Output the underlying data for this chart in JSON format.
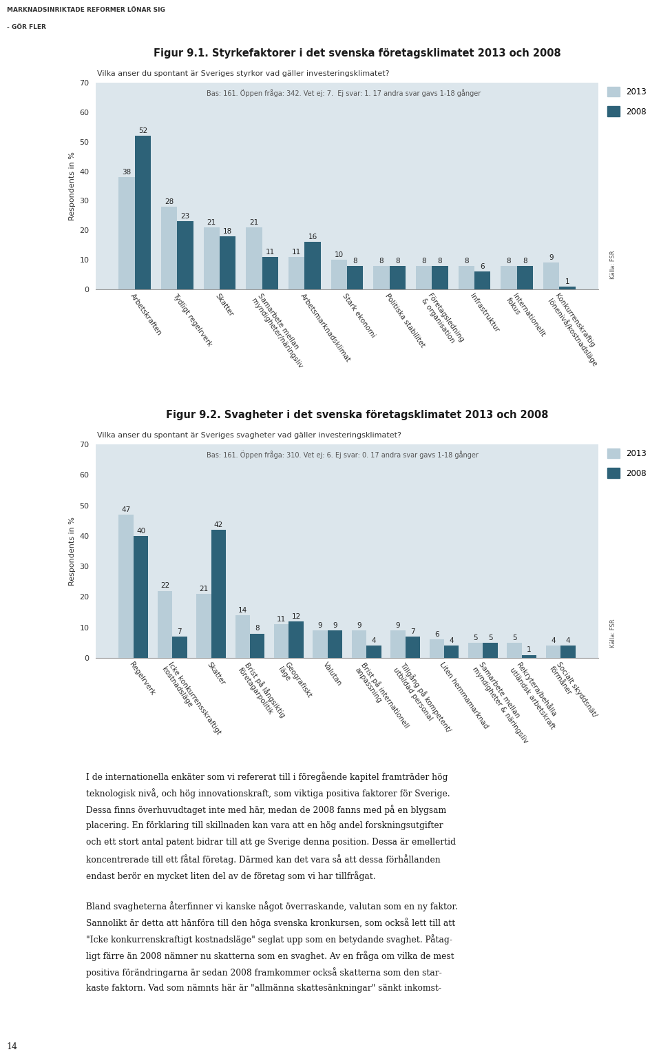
{
  "header_line1": "MARKNADSINRIKTADE REFORMER LÖNAR SIG",
  "header_line2": "- GÖR FLER",
  "page_number": "14",
  "fig1_title": "Figur 9.1. Styrkefaktorer i det svenska företagsklimatet 2013 och 2008",
  "fig1_subtitle": "Vilka anser du spontant är Sveriges styrkor vad gäller investeringsklimatet?",
  "fig1_note": "Bas: 161. Öppen fråga: 342. Vet ej: 7.  Ej svar: 1. 17 andra svar gavs 1-18 gånger",
  "fig1_ylabel": "Respondents in %",
  "fig1_ylim": [
    0,
    70
  ],
  "fig1_yticks": [
    0,
    10,
    20,
    30,
    40,
    50,
    60,
    70
  ],
  "fig1_categories": [
    "Arbetskraften",
    "Tydligt regelrverk",
    "Skatter",
    "Samarbete mellan\nmyndigheter/näringsliv",
    "Arbetsmarknadsklimat",
    "Stark ekonomi",
    "Politiska stabilitet",
    "Företagsledning\n& organisation",
    "Infrastruktur",
    "Internationellt\nfokus",
    "Konkurrenskraftig\nlönenivå/kostnadsläge"
  ],
  "fig1_values_2013": [
    38,
    28,
    21,
    21,
    11,
    10,
    8,
    8,
    8,
    8,
    9
  ],
  "fig1_values_2008": [
    52,
    23,
    18,
    11,
    16,
    8,
    8,
    8,
    6,
    8,
    1
  ],
  "fig2_title": "Figur 9.2. Svagheter i det svenska företagsklimatet 2013 och 2008",
  "fig2_subtitle": "Vilka anser du spontant är Sveriges svagheter vad gäller investeringsklimatet?",
  "fig2_note": "Bas: 161. Öppen fråga: 310. Vet ej: 6. Ej svar: 0. 17 andra svar gavs 1-18 gånger",
  "fig2_ylabel": "Respondents in %",
  "fig2_ylim": [
    0,
    70
  ],
  "fig2_yticks": [
    0,
    10,
    20,
    30,
    40,
    50,
    60,
    70
  ],
  "fig2_categories": [
    "Regelrverk",
    "Icke konkurrensskraftigt\nkostnadsläge",
    "Skatter",
    "Brist på långsiktig\nföretagarpolitik",
    "Geografiskt\nläge",
    "Valutan",
    "Brist på internationell\nanpassning",
    "Tillgång på kompetent/\nutbildad personal",
    "Liten hemmamarknad",
    "Samarbete mellan\nmyndigheter & näringsliv",
    "Rekrytera/behålla\nutländsk arbetskraft",
    "Socialt skyddsnät/\nförmåner"
  ],
  "fig2_values_2013": [
    47,
    22,
    21,
    14,
    11,
    9,
    9,
    9,
    6,
    5,
    5,
    4
  ],
  "fig2_values_2008": [
    40,
    7,
    42,
    8,
    12,
    9,
    4,
    7,
    4,
    5,
    1,
    4
  ],
  "color_2013": "#b8cdd8",
  "color_2008": "#2d6278",
  "bg_color": "#dce6ec",
  "body_text_para1": [
    "I de internationella enkäter som vi refererat till i föregående kapitel framträder hög",
    "teknologisk nivå, och hög innovationskraft, som viktiga positiva faktorer för Sverige.",
    "Dessa finns överhuvudtaget inte med här, medan de 2008 fanns med på en blygsam",
    "placering. En förklaring till skillnaden kan vara att en hög andel forskningsutgifter",
    "och ett stort antal patent bidrar till att ge Sverige denna position. Dessa är emellertid",
    "koncentrerade till ett fåtal företag. Därmed kan det vara så att dessa förhållanden",
    "endast berör en mycket liten del av de företag som vi har tillfrågat."
  ],
  "body_text_para2": [
    "Bland svagheterna återfinner vi kanske något överraskande, valutan som en ny faktor.",
    "Sannolikt är detta att hänföra till den höga svenska kronkursen, som också lett till att",
    "\"Icke konkurrenskraftigt kostnadsläge\" seglat upp som en betydande svaghet. Påtag-",
    "ligt färre än 2008 nämner nu skatterna som en svaghet. Av en fråga om vilka de mest",
    "positiva förändringarna är sedan 2008 framkommer också skatterna som den star-",
    "kaste faktorn. Vad som nämnts här är \"allmänna skattesänkningar\" sänkt inkomst-"
  ]
}
